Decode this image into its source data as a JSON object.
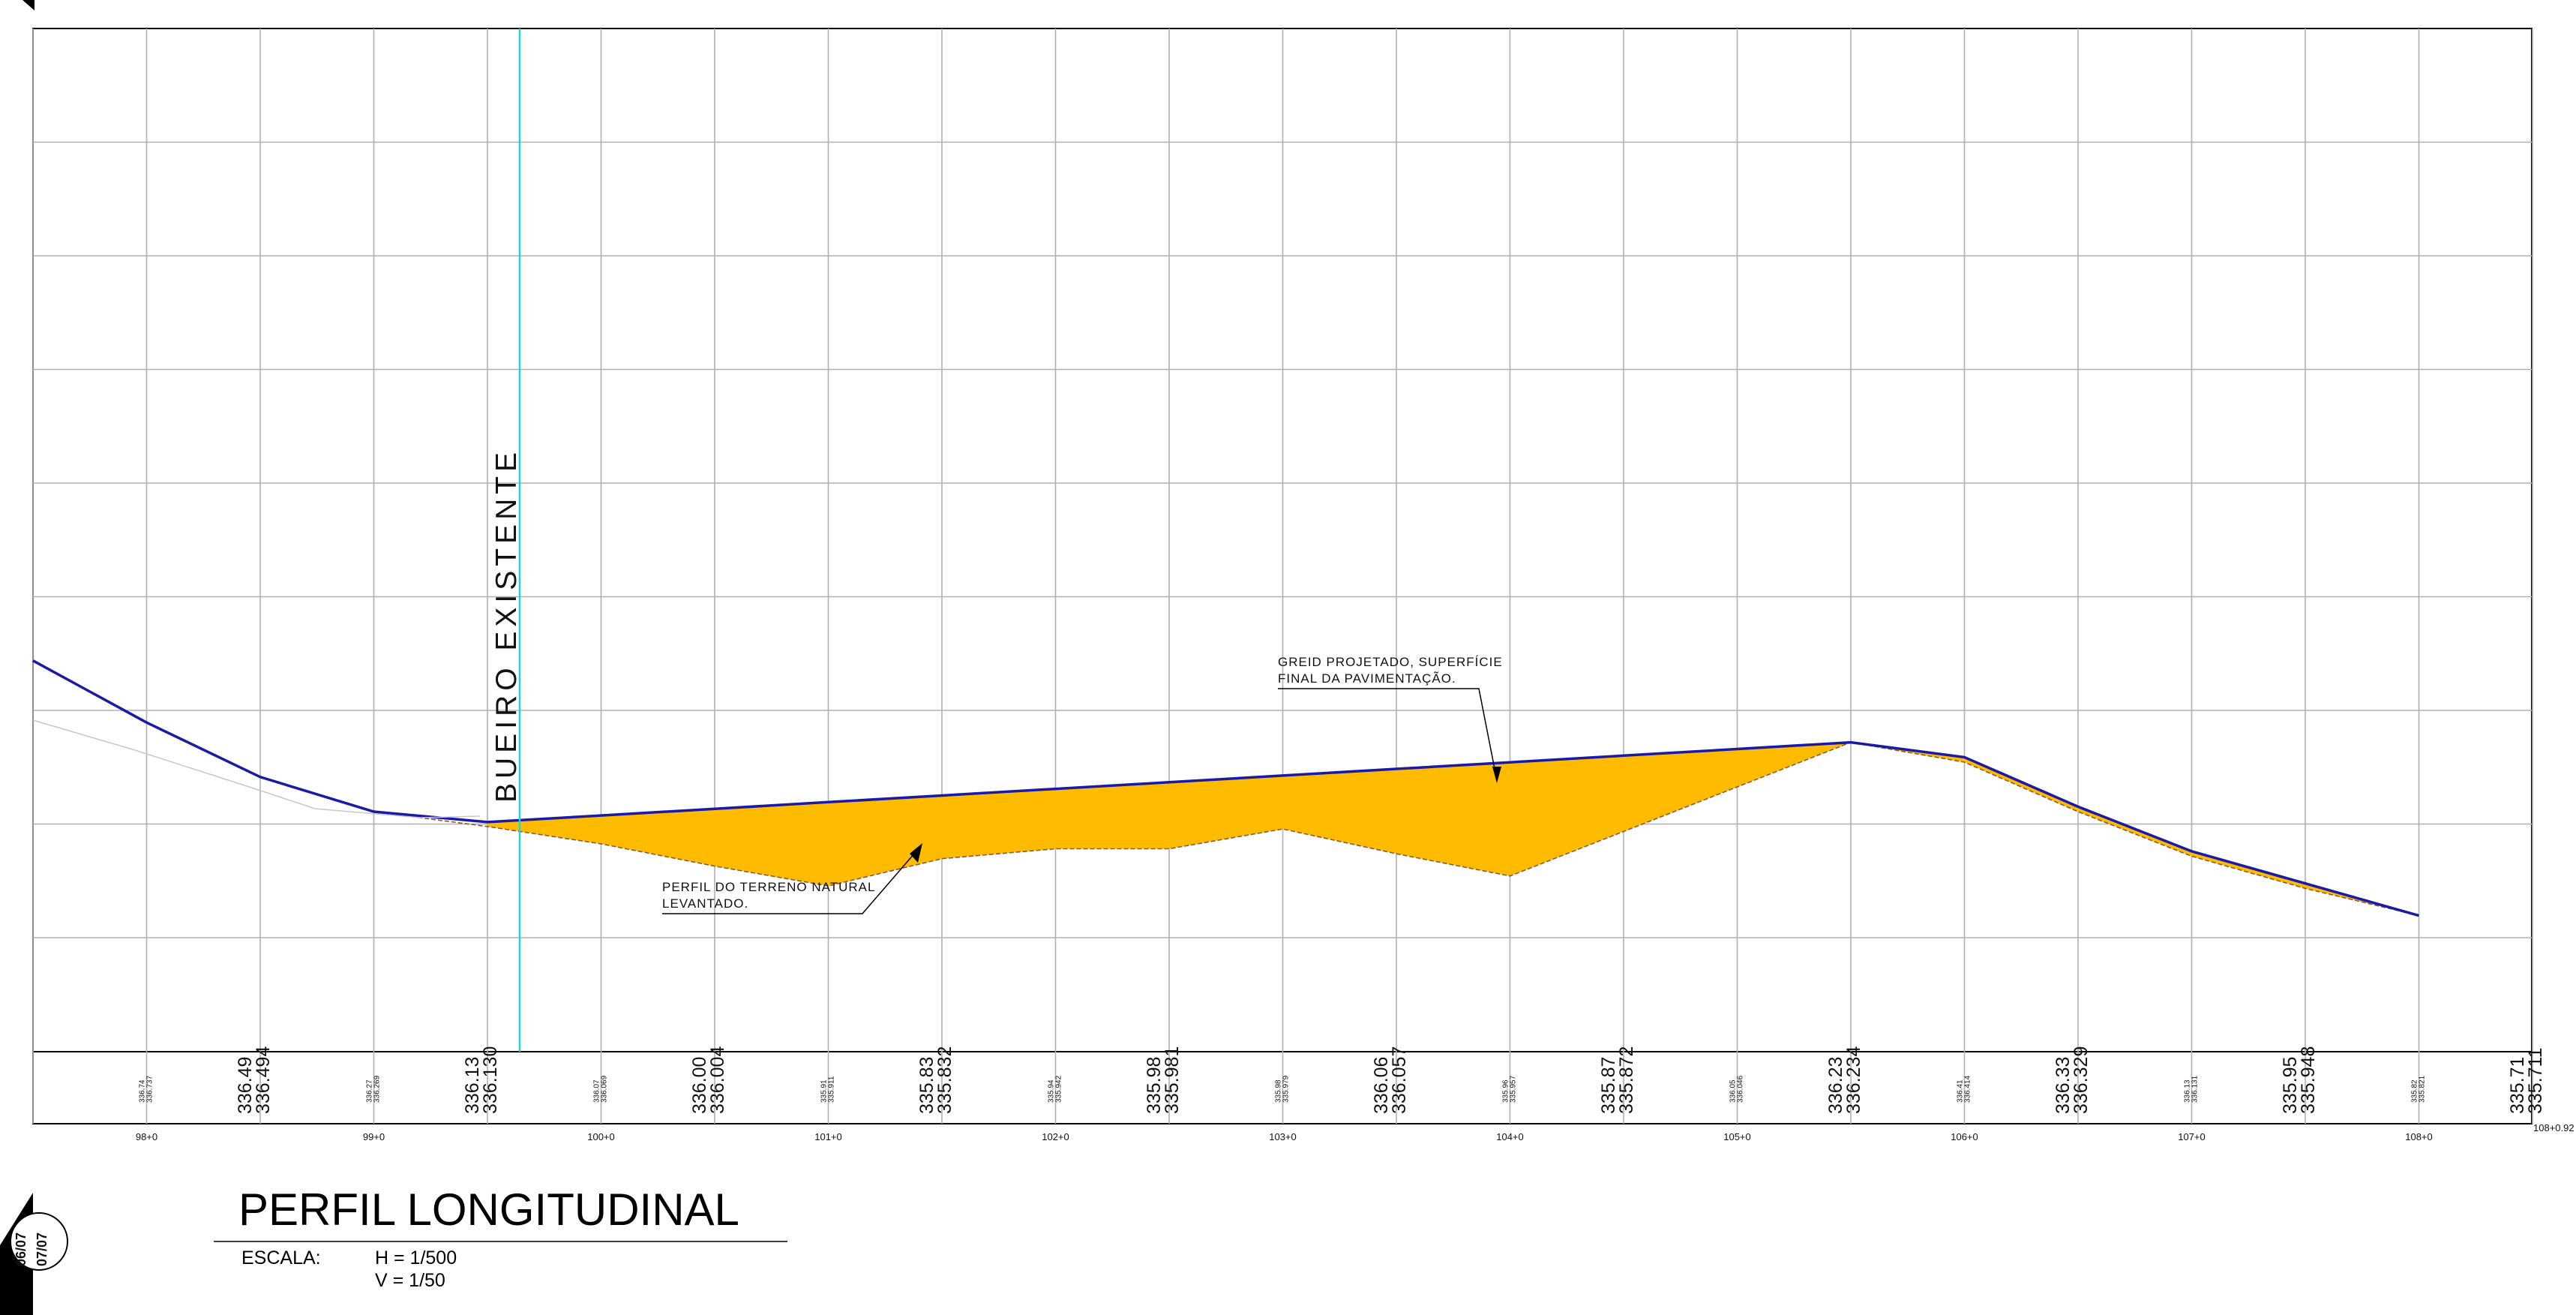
{
  "drawing": {
    "title": "PERFIL LONGITUDINAL",
    "scale": {
      "label": "ESCALA:",
      "h": "H = 1/500",
      "v": "V = 1/50"
    },
    "sheet_marks": [
      "06/07",
      "07/07"
    ],
    "culvert_label": "BUEIRO EXISTENTE",
    "notes": {
      "grade": [
        "GREID PROJETADO, SUPERFÍCIE",
        "FINAL DA PAVIMENTAÇÃO."
      ],
      "terrain": [
        "PERFIL DO TERRENO NATURAL",
        "LEVANTADO."
      ]
    },
    "colors": {
      "grade_line": "#1a1aa6",
      "fill_area": "#ffbb00",
      "culvert_line": "#22d3d3",
      "terrain_line": "#8a5a2b"
    }
  },
  "chart_data": {
    "type": "area",
    "x_unit": "station",
    "stations": [
      "98+0",
      "99+0",
      "100+0",
      "101+0",
      "102+0",
      "103+0",
      "104+0",
      "105+0",
      "106+0",
      "107+0",
      "108+0"
    ],
    "end_station": "108+0.92",
    "elevation_rows": [
      {
        "lo": "",
        "hi": "336.737",
        "h": "336.74"
      },
      {
        "big": true,
        "a": "336.49",
        "b": "336.494"
      },
      {
        "lo": "336.269",
        "h": "336.27"
      },
      {
        "big": true,
        "a": "336.13",
        "b": "336.130"
      },
      {
        "lo": "336.069",
        "h": "336.07"
      },
      {
        "big": true,
        "a": "336.00",
        "b": "336.004"
      },
      {
        "lo": "335.911",
        "h": "335.91"
      },
      {
        "big": true,
        "a": "335.83",
        "b": "335.832"
      },
      {
        "lo": "335.942",
        "h": "335.94"
      },
      {
        "big": true,
        "a": "335.98",
        "b": "335.981"
      },
      {
        "lo": "335.979",
        "h": "335.98"
      },
      {
        "big": true,
        "a": "336.06",
        "b": "336.057"
      },
      {
        "lo": "335.957",
        "h": "335.96"
      },
      {
        "big": true,
        "a": "335.87",
        "b": "335.872"
      },
      {
        "lo": "336.046",
        "h": "336.05"
      },
      {
        "big": true,
        "a": "336.23",
        "b": "336.234"
      },
      {
        "lo": "336.414",
        "h": "336.41"
      },
      {
        "big": true,
        "a": "336.33",
        "b": "336.329"
      },
      {
        "lo": "336.131",
        "h": "336.13"
      },
      {
        "big": true,
        "a": "335.95",
        "b": "335.948"
      },
      {
        "lo": "335.821",
        "h": "335.82"
      },
      {
        "big": true,
        "a": "335.71",
        "b": "335.711"
      }
    ],
    "series": [
      {
        "name": "GREID PROJETADO",
        "values": [
          336.74,
          336.49,
          336.27,
          336.13,
          336.069,
          336.13,
          336.19,
          336.25,
          336.31,
          336.37,
          336.41,
          336.33,
          336.13,
          335.95,
          335.71
        ]
      },
      {
        "name": "PERFIL DO TERRENO NATURAL",
        "values": [
          336.74,
          336.49,
          336.27,
          336.13,
          336.07,
          336.0,
          335.91,
          335.83,
          335.94,
          335.98,
          335.98,
          336.06,
          335.96,
          335.87,
          336.05,
          336.23,
          336.41,
          336.33,
          336.13,
          335.95,
          335.82,
          335.71
        ]
      }
    ]
  }
}
